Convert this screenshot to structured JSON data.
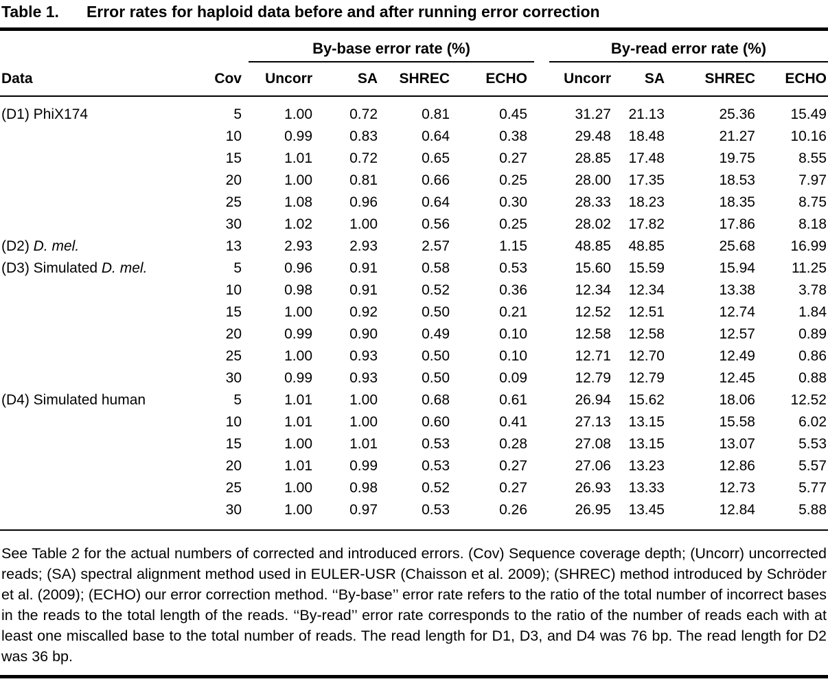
{
  "title": {
    "label": "Table 1.",
    "text": "Error rates for haploid data before and after running error correction"
  },
  "table": {
    "group_headers": [
      "By-base error rate (%)",
      "By-read error rate (%)"
    ],
    "columns": [
      "Data",
      "Cov",
      "Uncorr",
      "SA",
      "SHREC",
      "ECHO",
      "Uncorr",
      "SA",
      "SHREC",
      "ECHO"
    ],
    "rows": [
      {
        "label": "(D1) PhiX174",
        "label_italic": "",
        "cov": "5",
        "values": [
          "1.00",
          "0.72",
          "0.81",
          "0.45",
          "31.27",
          "21.13",
          "25.36",
          "15.49"
        ]
      },
      {
        "label": "",
        "label_italic": "",
        "cov": "10",
        "values": [
          "0.99",
          "0.83",
          "0.64",
          "0.38",
          "29.48",
          "18.48",
          "21.27",
          "10.16"
        ]
      },
      {
        "label": "",
        "label_italic": "",
        "cov": "15",
        "values": [
          "1.01",
          "0.72",
          "0.65",
          "0.27",
          "28.85",
          "17.48",
          "19.75",
          "8.55"
        ]
      },
      {
        "label": "",
        "label_italic": "",
        "cov": "20",
        "values": [
          "1.00",
          "0.81",
          "0.66",
          "0.25",
          "28.00",
          "17.35",
          "18.53",
          "7.97"
        ]
      },
      {
        "label": "",
        "label_italic": "",
        "cov": "25",
        "values": [
          "1.08",
          "0.96",
          "0.64",
          "0.30",
          "28.33",
          "18.23",
          "18.35",
          "8.75"
        ]
      },
      {
        "label": "",
        "label_italic": "",
        "cov": "30",
        "values": [
          "1.02",
          "1.00",
          "0.56",
          "0.25",
          "28.02",
          "17.82",
          "17.86",
          "8.18"
        ]
      },
      {
        "label": "(D2) ",
        "label_italic": "D. mel.",
        "cov": "13",
        "values": [
          "2.93",
          "2.93",
          "2.57",
          "1.15",
          "48.85",
          "48.85",
          "25.68",
          "16.99"
        ]
      },
      {
        "label": "(D3) Simulated ",
        "label_italic": "D. mel.",
        "cov": "5",
        "values": [
          "0.96",
          "0.91",
          "0.58",
          "0.53",
          "15.60",
          "15.59",
          "15.94",
          "11.25"
        ]
      },
      {
        "label": "",
        "label_italic": "",
        "cov": "10",
        "values": [
          "0.98",
          "0.91",
          "0.52",
          "0.36",
          "12.34",
          "12.34",
          "13.38",
          "3.78"
        ]
      },
      {
        "label": "",
        "label_italic": "",
        "cov": "15",
        "values": [
          "1.00",
          "0.92",
          "0.50",
          "0.21",
          "12.52",
          "12.51",
          "12.74",
          "1.84"
        ]
      },
      {
        "label": "",
        "label_italic": "",
        "cov": "20",
        "values": [
          "0.99",
          "0.90",
          "0.49",
          "0.10",
          "12.58",
          "12.58",
          "12.57",
          "0.89"
        ]
      },
      {
        "label": "",
        "label_italic": "",
        "cov": "25",
        "values": [
          "1.00",
          "0.93",
          "0.50",
          "0.10",
          "12.71",
          "12.70",
          "12.49",
          "0.86"
        ]
      },
      {
        "label": "",
        "label_italic": "",
        "cov": "30",
        "values": [
          "0.99",
          "0.93",
          "0.50",
          "0.09",
          "12.79",
          "12.79",
          "12.45",
          "0.88"
        ]
      },
      {
        "label": "(D4) Simulated human",
        "label_italic": "",
        "cov": "5",
        "values": [
          "1.01",
          "1.00",
          "0.68",
          "0.61",
          "26.94",
          "15.62",
          "18.06",
          "12.52"
        ]
      },
      {
        "label": "",
        "label_italic": "",
        "cov": "10",
        "values": [
          "1.01",
          "1.00",
          "0.60",
          "0.41",
          "27.13",
          "13.15",
          "15.58",
          "6.02"
        ]
      },
      {
        "label": "",
        "label_italic": "",
        "cov": "15",
        "values": [
          "1.00",
          "1.01",
          "0.53",
          "0.28",
          "27.08",
          "13.15",
          "13.07",
          "5.53"
        ]
      },
      {
        "label": "",
        "label_italic": "",
        "cov": "20",
        "values": [
          "1.01",
          "0.99",
          "0.53",
          "0.27",
          "27.06",
          "13.23",
          "12.86",
          "5.57"
        ]
      },
      {
        "label": "",
        "label_italic": "",
        "cov": "25",
        "values": [
          "1.00",
          "0.98",
          "0.52",
          "0.27",
          "26.93",
          "13.33",
          "12.73",
          "5.77"
        ]
      },
      {
        "label": "",
        "label_italic": "",
        "cov": "30",
        "values": [
          "1.00",
          "0.97",
          "0.53",
          "0.26",
          "26.95",
          "13.45",
          "12.84",
          "5.88"
        ]
      }
    ]
  },
  "footnote": "See Table 2 for the actual numbers of corrected and introduced errors. (Cov) Sequence coverage depth; (Uncorr) uncorrected reads; (SA) spectral alignment method used in EULER-USR (Chaisson et al. 2009); (SHREC) method introduced by Schröder et al. (2009); (ECHO) our error correction method. ‘‘By-base’’ error rate refers to the ratio of the total number of incorrect bases in the reads to the total length of the reads. ‘‘By-read’’ error rate corresponds to the ratio of the number of reads each with at least one miscalled base to the total number of reads. The read length for D1, D3, and D4 was 76 bp. The read length for D2 was 36 bp."
}
